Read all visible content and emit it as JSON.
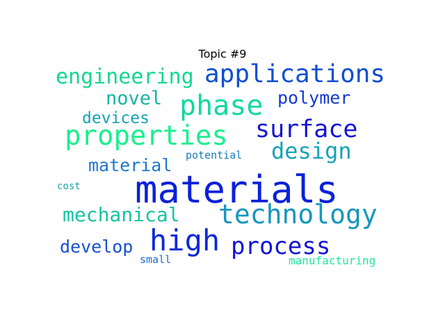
{
  "title": "Topic #9",
  "words": [
    {
      "text": "materials",
      "color": "#0a21d8"
    },
    {
      "text": "applications",
      "color": "#0f4fd0"
    },
    {
      "text": "phase",
      "color": "#12d8a0"
    },
    {
      "text": "properties",
      "color": "#19f08c"
    },
    {
      "text": "surface",
      "color": "#1414d4"
    },
    {
      "text": "technology",
      "color": "#1696be"
    },
    {
      "text": "high",
      "color": "#0c28d6"
    },
    {
      "text": "process",
      "color": "#1214d6"
    },
    {
      "text": "design",
      "color": "#17a2b4"
    },
    {
      "text": "engineering",
      "color": "#14d690"
    },
    {
      "text": "mechanical",
      "color": "#16c4a0"
    },
    {
      "text": "material",
      "color": "#1c78c8"
    },
    {
      "text": "novel",
      "color": "#16b4a4"
    },
    {
      "text": "polymer",
      "color": "#1438d2"
    },
    {
      "text": "devices",
      "color": "#17a2b0"
    },
    {
      "text": "develop",
      "color": "#1450d2"
    },
    {
      "text": "potential",
      "color": "#1a7ab8"
    },
    {
      "text": "cost",
      "color": "#17a4ae"
    },
    {
      "text": "small",
      "color": "#1a6cc6"
    },
    {
      "text": "manufacturing",
      "color": "#20e89a"
    }
  ]
}
